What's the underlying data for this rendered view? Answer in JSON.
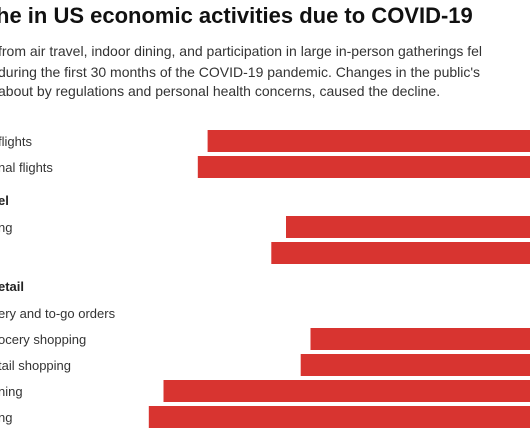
{
  "title": "he in US economic activities due to COVID-19",
  "subtitle_lines": [
    "from air travel, indoor dining, and participation in large in-person gatherings fel",
    "during the first 30 months of the COVID-19 pandemic. Changes in the public's",
    "about by regulations and personal health concerns, caused the decline."
  ],
  "colors": {
    "bar": "#d83430"
  },
  "chart_data": {
    "type": "bar",
    "orientation": "horizontal",
    "title": "he in US economic activities due to COVID-19",
    "xlabel": "",
    "ylabel": "",
    "note": "Chart is cropped; numeric axis and value labels are not visible.",
    "groups": [
      {
        "name": "",
        "items": [
          {
            "label": "flights",
            "value": 66
          },
          {
            "label": "nal flights",
            "value": 68
          }
        ]
      },
      {
        "name": "el",
        "items": [
          {
            "label": "ng",
            "value": 50
          },
          {
            "label": "",
            "value": 53
          }
        ]
      },
      {
        "name": "etail",
        "items": [
          {
            "label": "ery and to-go orders",
            "value": null
          },
          {
            "label": "ocery shopping",
            "value": 45
          },
          {
            "label": "tail shopping",
            "value": 47
          },
          {
            "label": "ning",
            "value": 75
          },
          {
            "label": "ng",
            "value": 78
          }
        ]
      }
    ]
  }
}
